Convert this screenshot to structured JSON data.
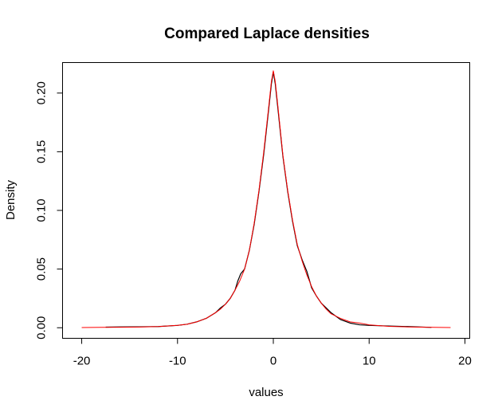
{
  "chart_data": {
    "type": "line",
    "title": "Compared Laplace densities",
    "xlabel": "values",
    "ylabel": "Density",
    "xlim": [
      -22,
      20.5
    ],
    "ylim": [
      -0.009,
      0.226
    ],
    "x_ticks": [
      -20,
      -10,
      0,
      10,
      20
    ],
    "x_tick_labels": [
      "-20",
      "-10",
      "0",
      "10",
      "20"
    ],
    "y_ticks": [
      0.0,
      0.05,
      0.1,
      0.15,
      0.2
    ],
    "y_tick_labels": [
      "0.00",
      "0.05",
      "0.10",
      "0.15",
      "0.20"
    ],
    "grid": false,
    "legend": "none",
    "series": [
      {
        "color": "#000000",
        "x": [
          -17.5,
          -16,
          -14,
          -12,
          -10,
          -9,
          -8,
          -7,
          -6,
          -5.5,
          -5,
          -4.5,
          -4,
          -3.7,
          -3.4,
          -3,
          -2.5,
          -2,
          -1.5,
          -1,
          -0.5,
          -0.2,
          0,
          0.2,
          0.5,
          1,
          1.5,
          2,
          2.5,
          3,
          3.5,
          4,
          4.5,
          5,
          5.5,
          6,
          7,
          8,
          9,
          10,
          12,
          14,
          16.5
        ],
        "y": [
          0.0005,
          0.0007,
          0.0008,
          0.001,
          0.002,
          0.003,
          0.005,
          0.008,
          0.013,
          0.017,
          0.02,
          0.025,
          0.032,
          0.04,
          0.046,
          0.05,
          0.066,
          0.088,
          0.116,
          0.148,
          0.185,
          0.208,
          0.218,
          0.208,
          0.185,
          0.146,
          0.116,
          0.091,
          0.07,
          0.058,
          0.048,
          0.034,
          0.027,
          0.021,
          0.017,
          0.013,
          0.007,
          0.004,
          0.0025,
          0.002,
          0.0015,
          0.001,
          0.0003
        ]
      },
      {
        "color": "#ff0000",
        "x": [
          -20,
          -18,
          -16,
          -14,
          -12,
          -10,
          -9,
          -8,
          -7,
          -6,
          -5.5,
          -5,
          -4.5,
          -4,
          -3.5,
          -3,
          -2.5,
          -2,
          -1.5,
          -1,
          -0.5,
          -0.2,
          0,
          0.2,
          0.5,
          1,
          1.5,
          2,
          2.5,
          3,
          3.5,
          4,
          4.5,
          5,
          5.5,
          6,
          7,
          8,
          9,
          10,
          12,
          14,
          16,
          18.5
        ],
        "y": [
          0.0002,
          0.0003,
          0.0004,
          0.0006,
          0.001,
          0.002,
          0.003,
          0.005,
          0.008,
          0.013,
          0.016,
          0.02,
          0.025,
          0.032,
          0.04,
          0.05,
          0.066,
          0.089,
          0.117,
          0.15,
          0.187,
          0.21,
          0.219,
          0.21,
          0.187,
          0.147,
          0.117,
          0.092,
          0.071,
          0.057,
          0.045,
          0.035,
          0.027,
          0.021,
          0.016,
          0.012,
          0.008,
          0.005,
          0.004,
          0.0025,
          0.0012,
          0.0007,
          0.0004,
          0.0002
        ]
      }
    ]
  }
}
